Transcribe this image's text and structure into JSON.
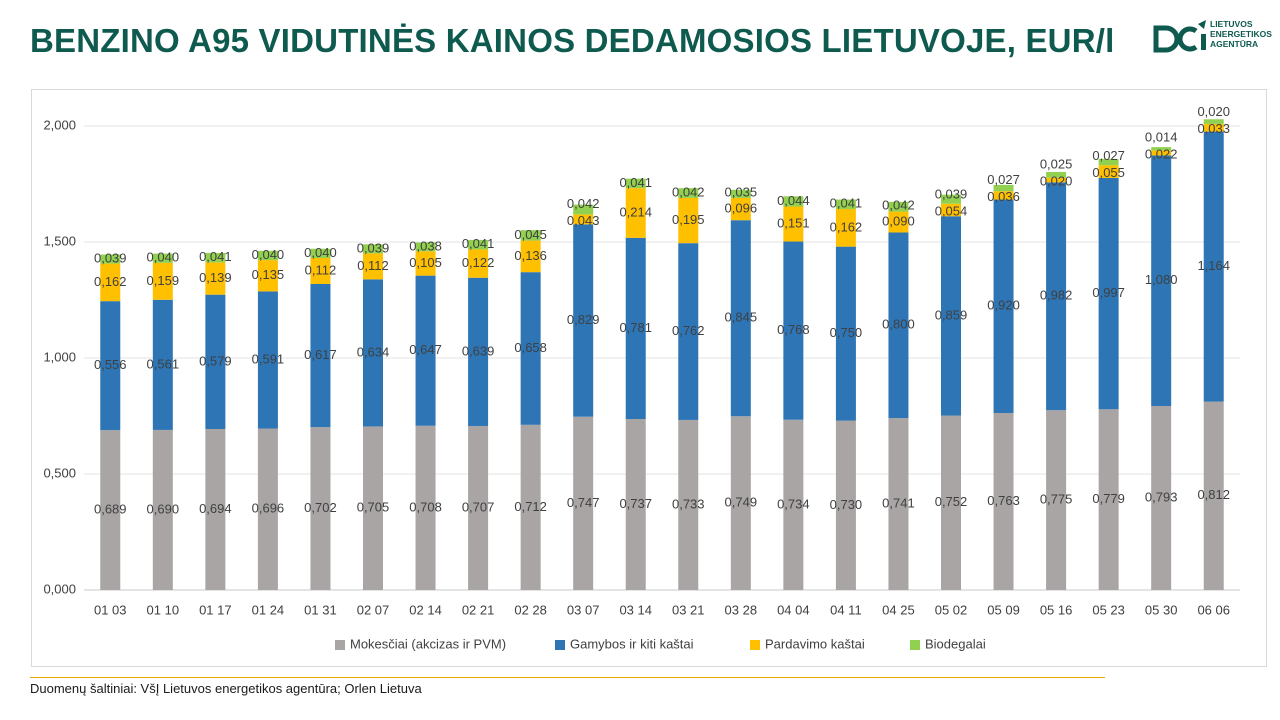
{
  "page": {
    "title": "BENZINO A95 VIDUTINĖS KAINOS DEDAMOSIOS LIETUVOJE, EUR/l",
    "source": "Duomenų šaltiniai: VšĮ Lietuvos energetikos agentūra; Orlen Lietuva"
  },
  "logo": {
    "lines": [
      "LIETUVOS",
      "ENERGETIKOS",
      "AGENTŪRA"
    ],
    "color": "#0e5a4f"
  },
  "chart_data": {
    "type": "bar",
    "stacked": true,
    "title": "BENZINO A95 VIDUTINĖS KAINOS DEDAMOSIOS LIETUVOJE, EUR/l",
    "xlabel": "",
    "ylabel": "",
    "ylim": [
      0,
      2
    ],
    "yticks": [
      "0,000",
      "0,500",
      "1,000",
      "1,500",
      "2,000"
    ],
    "grid": true,
    "legend_position": "bottom",
    "categories": [
      "01 03",
      "01 10",
      "01 17",
      "01 24",
      "01 31",
      "02 07",
      "02 14",
      "02 21",
      "02 28",
      "03 07",
      "03 14",
      "03 21",
      "03 28",
      "04 04",
      "04 11",
      "04 25",
      "05 02",
      "05 09",
      "05 16",
      "05 23",
      "05 30",
      "06 06"
    ],
    "series": [
      {
        "name": "Mokesčiai (akcizas ir PVM)",
        "color": "#a9a5a4",
        "values": [
          0.689,
          0.69,
          0.694,
          0.696,
          0.702,
          0.705,
          0.708,
          0.707,
          0.712,
          0.747,
          0.737,
          0.733,
          0.749,
          0.734,
          0.73,
          0.741,
          0.752,
          0.763,
          0.775,
          0.779,
          0.793,
          0.812
        ],
        "labels": [
          "0,689",
          "0,690",
          "0,694",
          "0,696",
          "0,702",
          "0,705",
          "0,708",
          "0,707",
          "0,712",
          "0,747",
          "0,737",
          "0,733",
          "0,749",
          "0,734",
          "0,730",
          "0,741",
          "0,752",
          "0,763",
          "0,775",
          "0,779",
          "0,793",
          "0,812"
        ]
      },
      {
        "name": "Gamybos ir kiti kaštai",
        "color": "#2e75b6",
        "values": [
          0.556,
          0.561,
          0.579,
          0.591,
          0.617,
          0.634,
          0.647,
          0.639,
          0.658,
          0.829,
          0.781,
          0.762,
          0.845,
          0.768,
          0.75,
          0.8,
          0.859,
          0.92,
          0.982,
          0.997,
          1.08,
          1.164
        ],
        "labels": [
          "0,556",
          "0,561",
          "0,579",
          "0,591",
          "0,617",
          "0,634",
          "0,647",
          "0,639",
          "0,658",
          "0,829",
          "0,781",
          "0,762",
          "0,845",
          "0,768",
          "0,750",
          "0,800",
          "0,859",
          "0,920",
          "0,982",
          "0,997",
          "1,080",
          "1,164"
        ]
      },
      {
        "name": "Pardavimo kaštai",
        "color": "#ffc000",
        "values": [
          0.162,
          0.159,
          0.139,
          0.135,
          0.112,
          0.112,
          0.105,
          0.122,
          0.136,
          0.043,
          0.214,
          0.195,
          0.096,
          0.151,
          0.162,
          0.09,
          0.054,
          0.036,
          0.02,
          0.055,
          0.022,
          0.033
        ],
        "labels": [
          "0,162",
          "0,159",
          "0,139",
          "0,135",
          "0,112",
          "0,112",
          "0,105",
          "0,122",
          "0,136",
          "0,043",
          "0,214",
          "0,195",
          "0,096",
          "0,151",
          "0,162",
          "0,090",
          "0,054",
          "0,036",
          "0,020",
          "0,055",
          "0,022",
          "0,033"
        ]
      },
      {
        "name": "Biodegalai",
        "color": "#92d050",
        "values": [
          0.039,
          0.04,
          0.041,
          0.04,
          0.04,
          0.039,
          0.038,
          0.041,
          0.045,
          0.042,
          0.041,
          0.042,
          0.035,
          0.044,
          0.041,
          0.042,
          0.039,
          0.027,
          0.025,
          0.027,
          0.014,
          0.02
        ],
        "labels": [
          "0,039",
          "0,040",
          "0,041",
          "0,040",
          "0,040",
          "0,039",
          "0,038",
          "0,041",
          "0,045",
          "0,042",
          "0,041",
          "0,042",
          "0,035",
          "0,044",
          "0,041",
          "0,042",
          "0,039",
          "0,027",
          "0,025",
          "0,027",
          "0,014",
          "0,020"
        ]
      }
    ]
  }
}
